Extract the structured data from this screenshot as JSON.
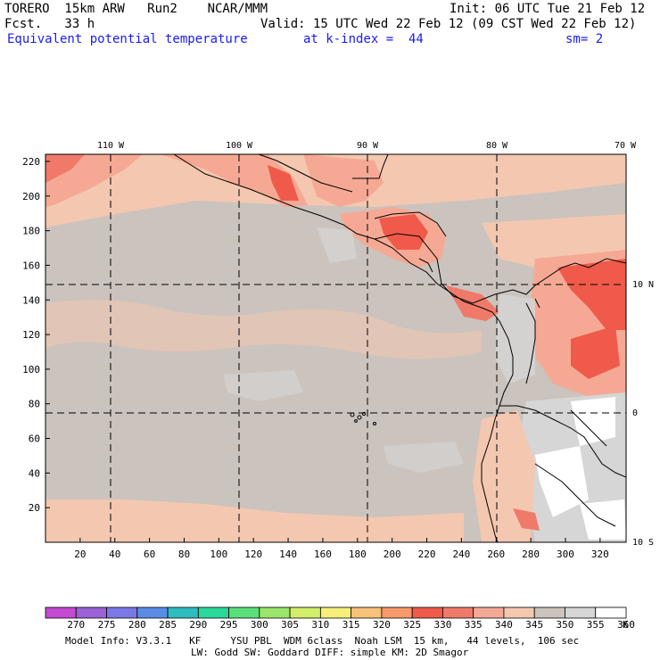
{
  "header": {
    "model": "TORERO  15km ARW   Run2    NCAR/MMM",
    "init": "Init: 06 UTC Tue 21 Feb 12",
    "fcst": "Fcst.   33 h",
    "valid": "Valid: 15 UTC Wed 22 Feb 12 (09 CST Wed 22 Feb 12)",
    "field": "Equivalent potential temperature",
    "level": "at k-index =  44",
    "smooth": "sm= 2"
  },
  "map": {
    "lon_labels": [
      "110 W",
      "100 W",
      "90 W",
      "80 W",
      "70 W"
    ],
    "lat_labels": [
      "10 N",
      "0",
      "10 S"
    ],
    "y_ticks": [
      "20",
      "40",
      "60",
      "80",
      "100",
      "120",
      "140",
      "160",
      "180",
      "200",
      "220"
    ],
    "x_ticks": [
      "20",
      "40",
      "60",
      "80",
      "100",
      "120",
      "140",
      "160",
      "180",
      "200",
      "220",
      "240",
      "260",
      "280",
      "300",
      "320"
    ]
  },
  "colorbar": {
    "values": [
      "270",
      "275",
      "280",
      "285",
      "290",
      "295",
      "300",
      "305",
      "310",
      "315",
      "320",
      "325",
      "330",
      "335",
      "340",
      "345",
      "350",
      "355",
      "360"
    ],
    "unit": "K",
    "colors": [
      "#c34ad1",
      "#9b61d6",
      "#7b78e6",
      "#5a8ce6",
      "#2dbcc0",
      "#2ad89a",
      "#5ae07a",
      "#9ae66a",
      "#d2ee6a",
      "#f7ee7a",
      "#f7c27a",
      "#f79a6a",
      "#ef5a4a",
      "#f07a6a",
      "#f5a994",
      "#f4c7b0",
      "#cbc3bd",
      "#d6d6d6",
      "#ffffff"
    ]
  },
  "footer": {
    "line1": "Model Info: V3.3.1   KF     YSU PBL  WDM 6class  Noah LSM  15 km,   44 levels,  106 sec",
    "line2": "LW: Godd SW: Goddard DIFF: simple KM: 2D Smagor"
  }
}
